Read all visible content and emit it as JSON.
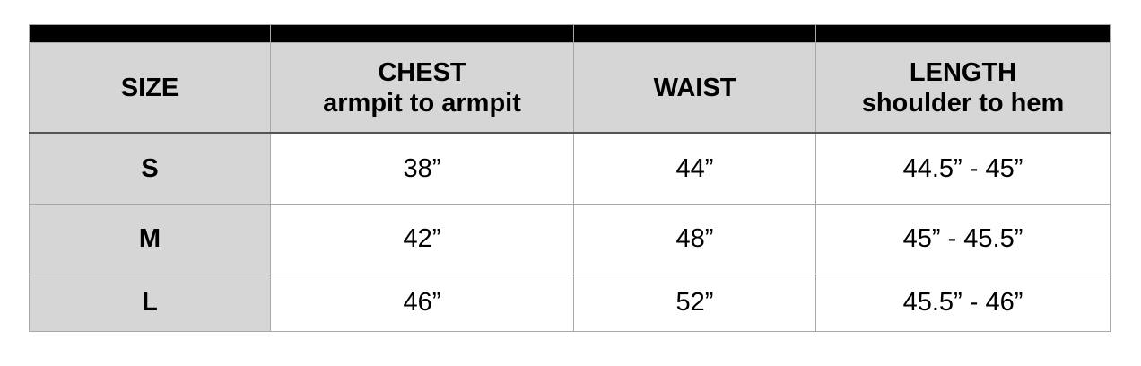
{
  "headers": [
    {
      "title": "SIZE",
      "sub": ""
    },
    {
      "title": "CHEST",
      "sub": "armpit to armpit"
    },
    {
      "title": "WAIST",
      "sub": ""
    },
    {
      "title": "LENGTH",
      "sub": "shoulder to hem"
    }
  ],
  "rows": [
    {
      "size": "S",
      "chest": "38”",
      "waist": "44”",
      "length": "44.5” - 45”"
    },
    {
      "size": "M",
      "chest": "42”",
      "waist": "48”",
      "length": "45” - 45.5”"
    },
    {
      "size": "L",
      "chest": "46”",
      "waist": "52”",
      "length": "45.5” - 46”"
    }
  ]
}
